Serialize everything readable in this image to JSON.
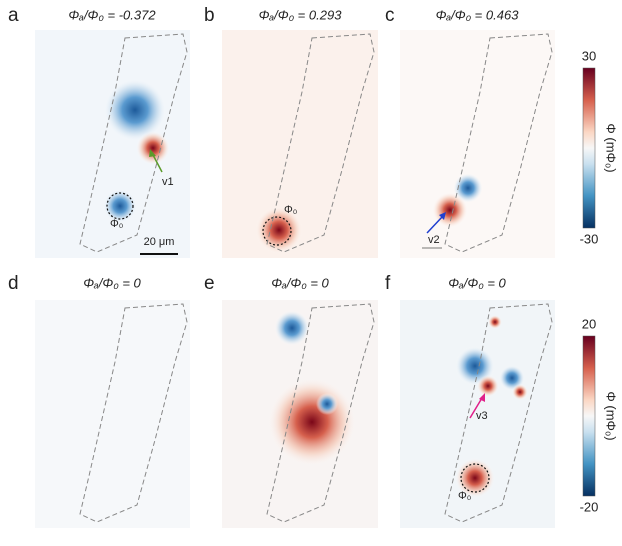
{
  "panels": [
    {
      "letter": "a",
      "title": "Φₐ/Φ₀ = -0.372",
      "annotations": [
        "v1",
        "Φ₀",
        "20 μm"
      ]
    },
    {
      "letter": "b",
      "title": "Φₐ/Φ₀ = 0.293",
      "annotations": [
        "Φ₀"
      ]
    },
    {
      "letter": "c",
      "title": "Φₐ/Φ₀ = 0.463",
      "annotations": [
        "v2"
      ]
    },
    {
      "letter": "d",
      "title": "Φₐ/Φ₀ = 0"
    },
    {
      "letter": "e",
      "title": "Φₐ/Φ₀ = 0"
    },
    {
      "letter": "f",
      "title": "Φₐ/Φ₀ = 0",
      "annotations": [
        "v3",
        "Φ₀"
      ]
    }
  ],
  "colorbars": [
    {
      "max": 30,
      "min": -30,
      "label": "Φ (mΦ₀)"
    },
    {
      "max": 20,
      "min": -20,
      "label": "Φ (mΦ₀)"
    }
  ]
}
